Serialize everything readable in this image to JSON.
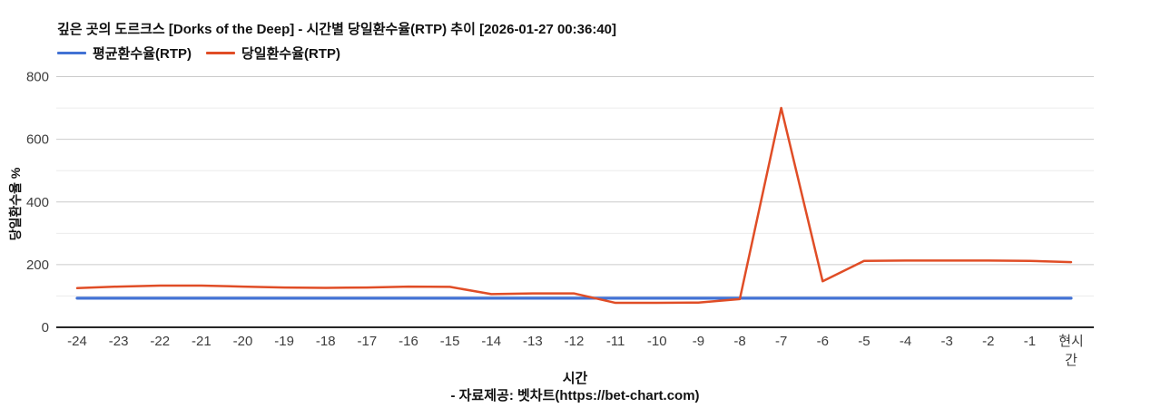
{
  "footer_source": "- 자료제공: 벳차트(https://bet-chart.com)",
  "chart_data": {
    "type": "line",
    "title": "깊은 곳의 도르크스 [Dorks of the Deep] - 시간별 당일환수율(RTP) 추이 [2026-01-27 00:36:40]",
    "xlabel": "시간",
    "ylabel": "당일환수율 %",
    "ylim": [
      0,
      800
    ],
    "yticks": [
      0,
      200,
      400,
      600,
      800
    ],
    "minor_ytick_step": 100,
    "grid": "horizontal-only",
    "legend_position": "top-left",
    "categories": [
      "-24",
      "-23",
      "-22",
      "-21",
      "-20",
      "-19",
      "-18",
      "-17",
      "-16",
      "-15",
      "-14",
      "-13",
      "-12",
      "-11",
      "-10",
      "-9",
      "-8",
      "-7",
      "-6",
      "-5",
      "-4",
      "-3",
      "-2",
      "-1",
      "현시간"
    ],
    "series": [
      {
        "name": "평균환수율(RTP)",
        "color": "#4272d4",
        "values": [
          93,
          93,
          93,
          93,
          93,
          93,
          93,
          93,
          93,
          93,
          93,
          93,
          93,
          93,
          93,
          93,
          93,
          93,
          93,
          93,
          93,
          93,
          93,
          93,
          93
        ]
      },
      {
        "name": "당일환수율(RTP)",
        "color": "#e04d26",
        "values": [
          125,
          130,
          133,
          133,
          130,
          127,
          126,
          127,
          130,
          129,
          106,
          108,
          108,
          78,
          78,
          79,
          90,
          700,
          147,
          212,
          213,
          213,
          213,
          212,
          208
        ]
      }
    ],
    "colors": {
      "major_gridline": "#cbcbcb",
      "minor_gridline": "#ececec",
      "axis_line": "#262626",
      "tick_text": "#3d3d3d"
    }
  }
}
